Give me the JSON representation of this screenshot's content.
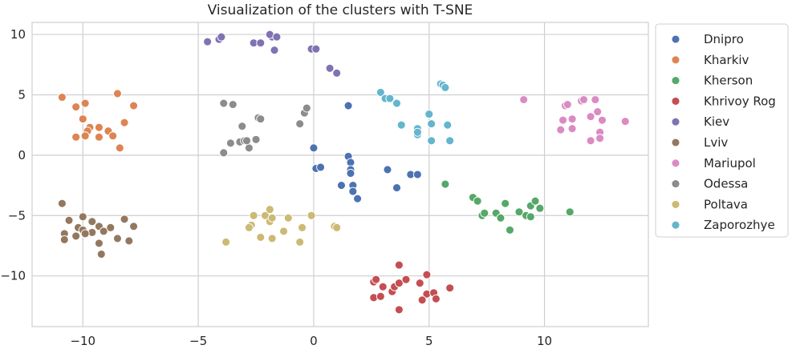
{
  "chart_data": {
    "type": "scatter",
    "title": "Visualization of the clusters with T-SNE",
    "xlabel": "",
    "ylabel": "",
    "xlim": [
      -12.2,
      14.5
    ],
    "ylim": [
      -14.2,
      11.0
    ],
    "x_ticks": [
      -10,
      -5,
      0,
      5,
      10
    ],
    "y_ticks": [
      10,
      5,
      0,
      -5,
      -10
    ],
    "x_tick_labels": [
      "−10",
      "−5",
      "0",
      "5",
      "10"
    ],
    "y_tick_labels": [
      "10",
      "5",
      "0",
      "−5",
      "−10"
    ],
    "grid": true,
    "legend_position": "outside-right",
    "series": [
      {
        "name": "Dnipro",
        "color": "#4c72b0",
        "points": [
          [
            1.5,
            4.1
          ],
          [
            0.0,
            0.6
          ],
          [
            0.1,
            -1.1
          ],
          [
            0.3,
            -1.0
          ],
          [
            1.5,
            -0.1
          ],
          [
            1.6,
            -0.6
          ],
          [
            1.6,
            -1.2
          ],
          [
            1.6,
            -1.5
          ],
          [
            1.7,
            -2.5
          ],
          [
            1.7,
            -3.0
          ],
          [
            1.9,
            -3.6
          ],
          [
            1.2,
            -2.5
          ],
          [
            3.2,
            -1.2
          ],
          [
            3.6,
            -2.7
          ],
          [
            4.2,
            -1.6
          ],
          [
            4.5,
            -1.6
          ]
        ]
      },
      {
        "name": "Kharkiv",
        "color": "#dd8452",
        "points": [
          [
            -10.9,
            4.8
          ],
          [
            -10.3,
            4.0
          ],
          [
            -9.9,
            4.3
          ],
          [
            -10.0,
            3.0
          ],
          [
            -9.7,
            2.3
          ],
          [
            -9.3,
            2.3
          ],
          [
            -9.8,
            2.0
          ],
          [
            -10.3,
            1.5
          ],
          [
            -9.9,
            1.6
          ],
          [
            -9.3,
            1.5
          ],
          [
            -8.9,
            2.0
          ],
          [
            -8.7,
            1.6
          ],
          [
            -8.5,
            5.1
          ],
          [
            -8.2,
            2.7
          ],
          [
            -7.8,
            4.1
          ],
          [
            -8.4,
            0.6
          ]
        ]
      },
      {
        "name": "Kherson",
        "color": "#55a868",
        "points": [
          [
            5.7,
            -2.4
          ],
          [
            6.9,
            -3.5
          ],
          [
            7.1,
            -3.8
          ],
          [
            7.3,
            -5.0
          ],
          [
            7.4,
            -4.8
          ],
          [
            7.9,
            -4.8
          ],
          [
            8.1,
            -5.2
          ],
          [
            8.3,
            -4.0
          ],
          [
            8.5,
            -6.2
          ],
          [
            8.9,
            -4.7
          ],
          [
            9.2,
            -5.0
          ],
          [
            9.4,
            -5.1
          ],
          [
            9.4,
            -4.2
          ],
          [
            9.6,
            -3.8
          ],
          [
            9.8,
            -4.4
          ],
          [
            11.1,
            -4.7
          ]
        ]
      },
      {
        "name": "Khrivoy Rog",
        "color": "#c44e52",
        "points": [
          [
            2.6,
            -10.5
          ],
          [
            2.7,
            -10.3
          ],
          [
            3.0,
            -10.9
          ],
          [
            2.6,
            -11.8
          ],
          [
            2.9,
            -11.7
          ],
          [
            3.4,
            -11.3
          ],
          [
            3.5,
            -10.9
          ],
          [
            3.7,
            -10.6
          ],
          [
            3.7,
            -9.1
          ],
          [
            4.0,
            -10.3
          ],
          [
            3.7,
            -12.8
          ],
          [
            4.6,
            -10.6
          ],
          [
            4.9,
            -9.9
          ],
          [
            4.9,
            -11.5
          ],
          [
            5.2,
            -11.4
          ],
          [
            5.3,
            -11.9
          ],
          [
            4.7,
            -12.0
          ],
          [
            5.9,
            -11.0
          ]
        ]
      },
      {
        "name": "Kiev",
        "color": "#8172b3",
        "points": [
          [
            -4.6,
            9.4
          ],
          [
            -4.1,
            9.6
          ],
          [
            -4.0,
            9.8
          ],
          [
            -2.6,
            9.3
          ],
          [
            -2.3,
            9.3
          ],
          [
            -1.8,
            9.8
          ],
          [
            -1.9,
            10.0
          ],
          [
            -1.6,
            9.8
          ],
          [
            -1.7,
            8.7
          ],
          [
            -0.1,
            8.8
          ],
          [
            0.1,
            8.8
          ],
          [
            0.7,
            7.2
          ],
          [
            1.0,
            6.8
          ]
        ]
      },
      {
        "name": "Lviv",
        "color": "#937860",
        "points": [
          [
            -10.9,
            -4.0
          ],
          [
            -10.8,
            -6.5
          ],
          [
            -10.8,
            -7.0
          ],
          [
            -10.6,
            -5.4
          ],
          [
            -10.2,
            -6.0
          ],
          [
            -10.3,
            -6.7
          ],
          [
            -10.0,
            -6.2
          ],
          [
            -10.0,
            -5.1
          ],
          [
            -9.6,
            -5.5
          ],
          [
            -9.6,
            -6.4
          ],
          [
            -9.3,
            -5.9
          ],
          [
            -9.2,
            -8.2
          ],
          [
            -9.3,
            -7.3
          ],
          [
            -9.1,
            -6.3
          ],
          [
            -8.8,
            -6.0
          ],
          [
            -8.5,
            -6.9
          ],
          [
            -8.2,
            -5.3
          ],
          [
            -8.0,
            -7.1
          ],
          [
            -7.8,
            -5.9
          ],
          [
            -9.9,
            -6.5
          ]
        ]
      },
      {
        "name": "Mariupol",
        "color": "#da8bc3",
        "points": [
          [
            9.1,
            4.6
          ],
          [
            10.9,
            4.1
          ],
          [
            11.0,
            4.2
          ],
          [
            10.8,
            2.9
          ],
          [
            11.2,
            3.0
          ],
          [
            10.7,
            2.1
          ],
          [
            11.2,
            2.2
          ],
          [
            11.6,
            4.5
          ],
          [
            11.7,
            4.6
          ],
          [
            12.0,
            3.2
          ],
          [
            12.2,
            4.6
          ],
          [
            12.3,
            3.6
          ],
          [
            12.5,
            2.9
          ],
          [
            12.4,
            1.9
          ],
          [
            12.4,
            1.4
          ],
          [
            12.0,
            1.2
          ],
          [
            13.5,
            2.8
          ]
        ]
      },
      {
        "name": "Odessa",
        "color": "#8c8c8c",
        "points": [
          [
            -3.9,
            4.3
          ],
          [
            -3.5,
            4.2
          ],
          [
            -3.9,
            0.2
          ],
          [
            -3.6,
            1.0
          ],
          [
            -3.2,
            1.1
          ],
          [
            -3.1,
            2.4
          ],
          [
            -3.0,
            1.2
          ],
          [
            -2.8,
            0.6
          ],
          [
            -2.5,
            1.3
          ],
          [
            -2.4,
            3.1
          ],
          [
            -2.3,
            3.0
          ],
          [
            -0.6,
            2.6
          ],
          [
            -0.4,
            3.5
          ],
          [
            -0.3,
            3.9
          ],
          [
            -2.9,
            1.2
          ]
        ]
      },
      {
        "name": "Poltava",
        "color": "#ccb974",
        "points": [
          [
            -3.8,
            -7.2
          ],
          [
            -2.6,
            -5.0
          ],
          [
            -2.7,
            -5.8
          ],
          [
            -2.8,
            -6.0
          ],
          [
            -2.3,
            -6.8
          ],
          [
            -2.1,
            -5.0
          ],
          [
            -1.9,
            -4.5
          ],
          [
            -1.9,
            -5.5
          ],
          [
            -1.8,
            -5.2
          ],
          [
            -1.8,
            -6.9
          ],
          [
            -1.3,
            -6.3
          ],
          [
            -1.1,
            -5.2
          ],
          [
            -0.6,
            -7.2
          ],
          [
            -0.5,
            -6.0
          ],
          [
            -0.1,
            -5.0
          ],
          [
            0.9,
            -5.9
          ],
          [
            1.0,
            -6.0
          ]
        ]
      },
      {
        "name": "Zaporozhye",
        "color": "#64b5cd",
        "points": [
          [
            2.9,
            5.2
          ],
          [
            3.1,
            4.7
          ],
          [
            3.3,
            4.7
          ],
          [
            3.6,
            4.3
          ],
          [
            3.8,
            2.5
          ],
          [
            4.5,
            2.2
          ],
          [
            4.5,
            1.7
          ],
          [
            4.5,
            1.9
          ],
          [
            5.0,
            3.4
          ],
          [
            5.1,
            2.6
          ],
          [
            5.1,
            1.2
          ],
          [
            5.5,
            5.9
          ],
          [
            5.6,
            5.8
          ],
          [
            5.7,
            5.6
          ],
          [
            5.8,
            2.5
          ],
          [
            5.9,
            1.2
          ]
        ]
      }
    ]
  }
}
